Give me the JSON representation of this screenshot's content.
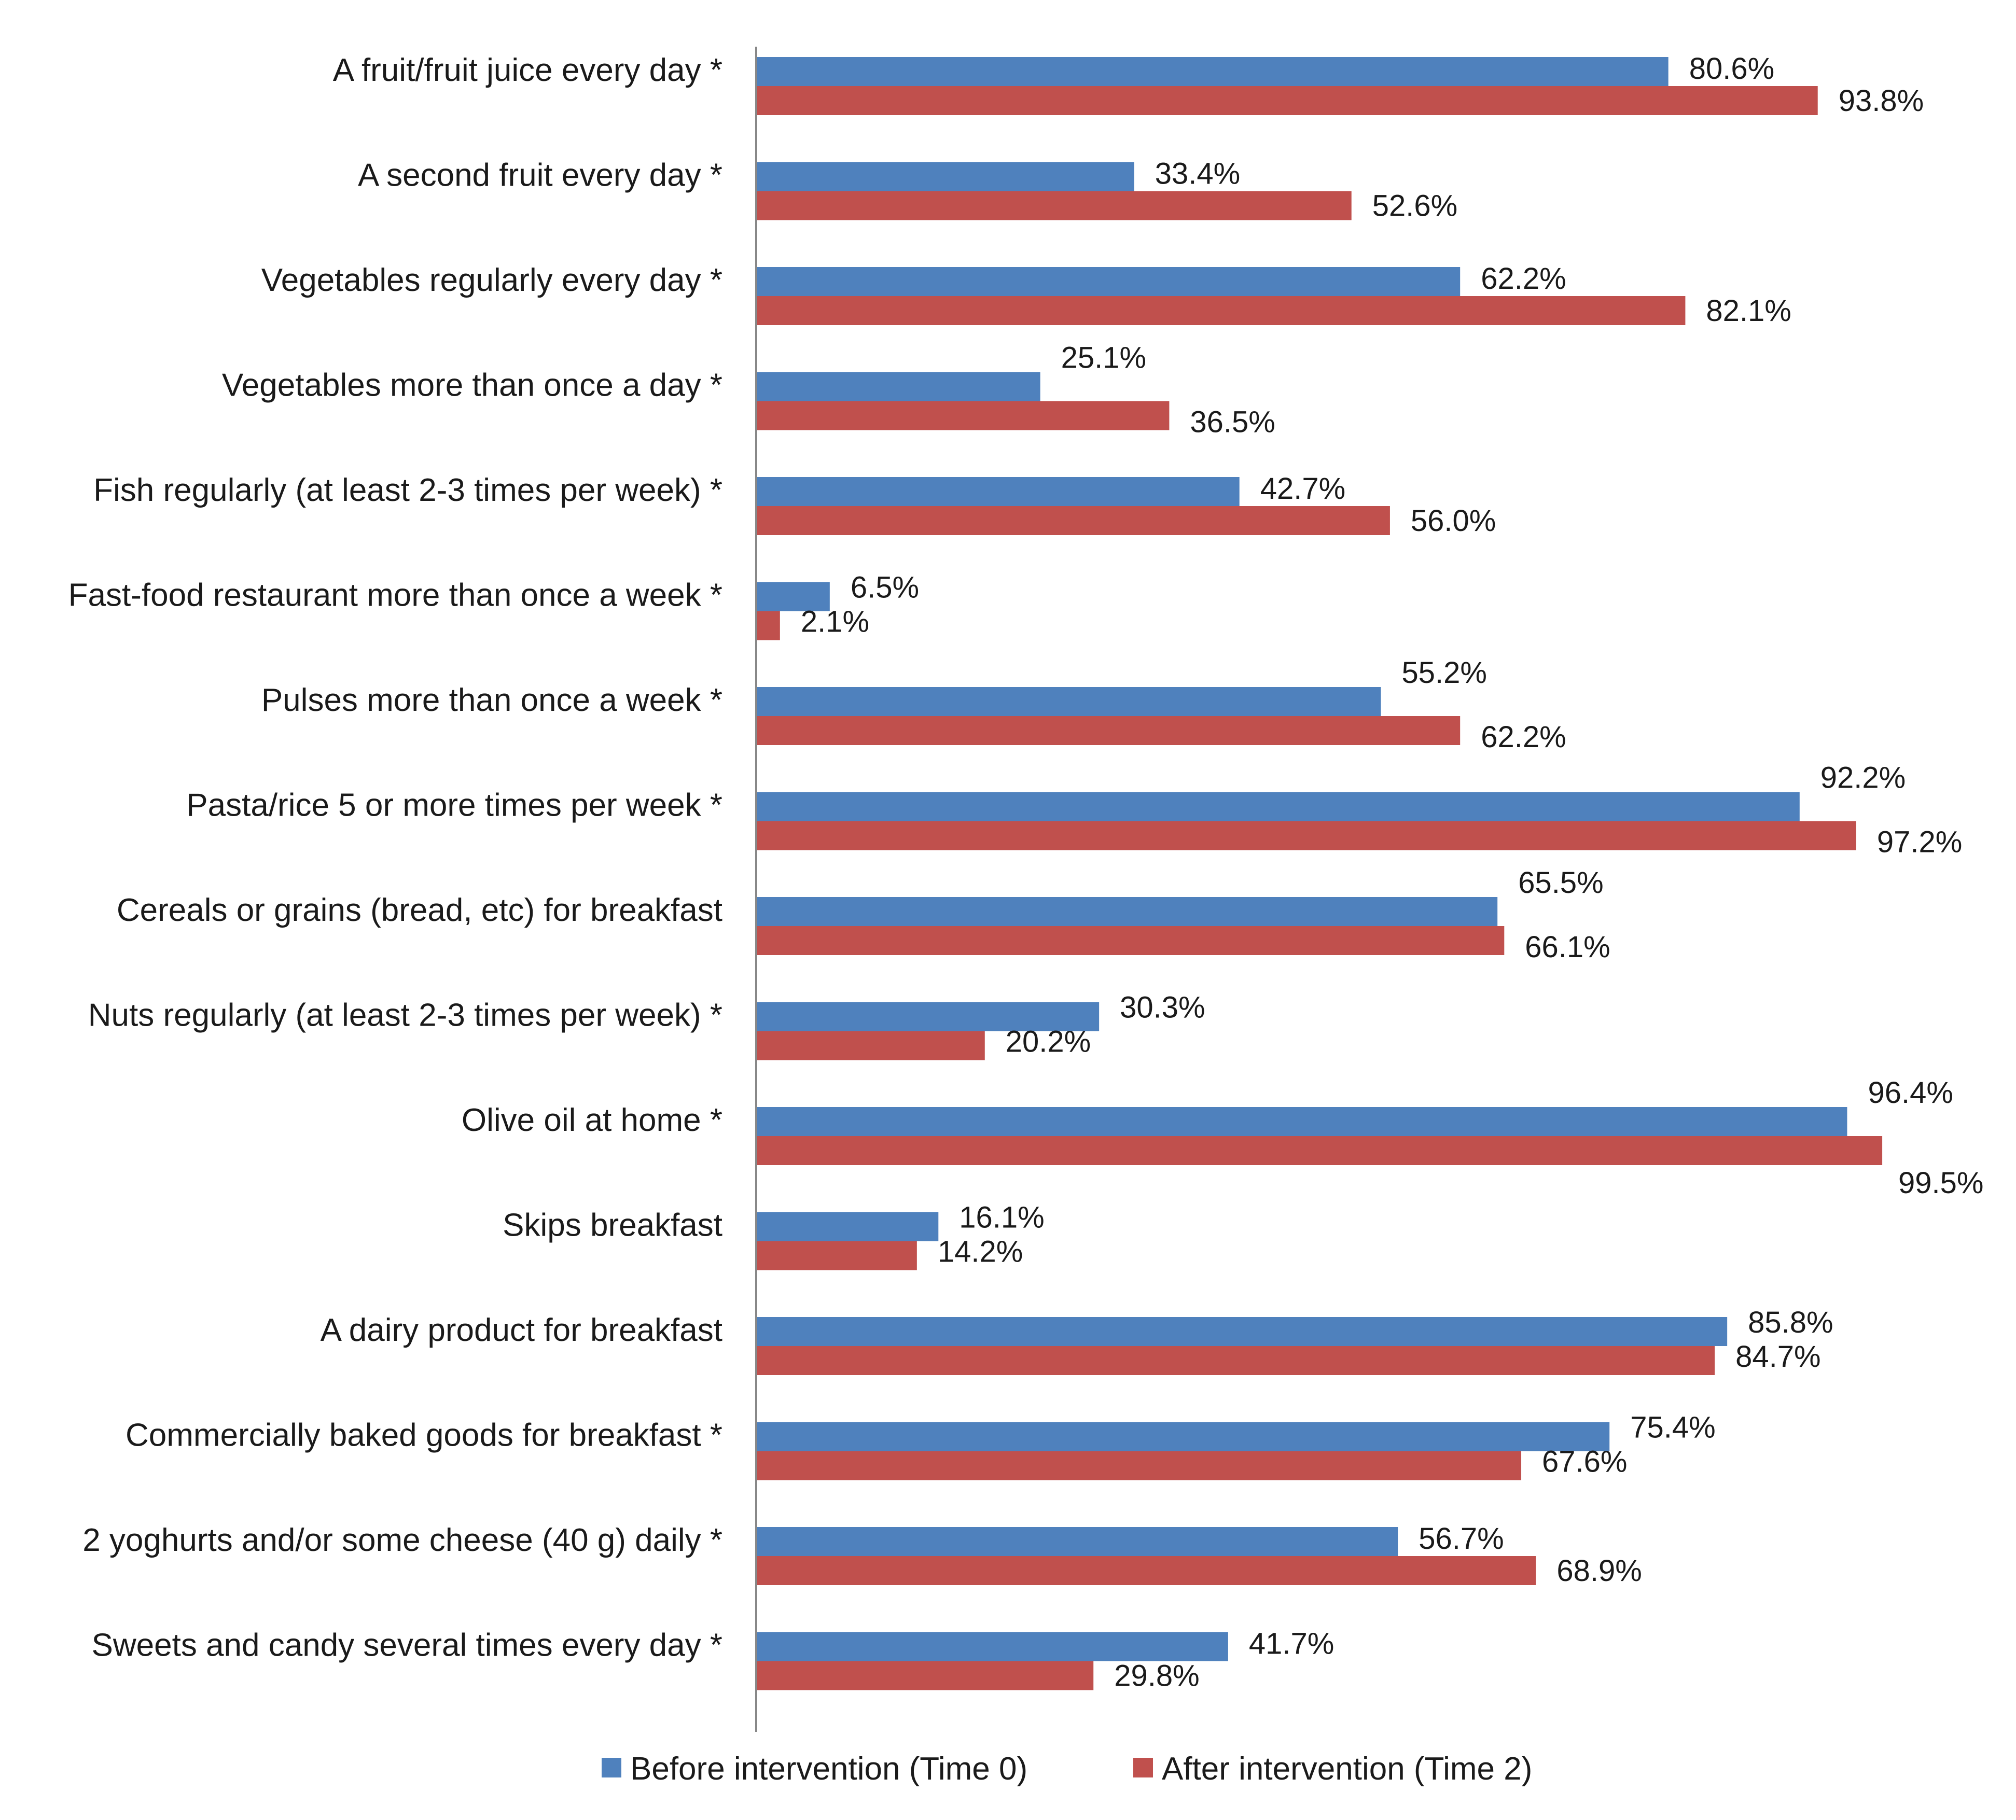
{
  "chart_data": {
    "type": "bar",
    "orientation": "horizontal",
    "title": "",
    "xlabel": "",
    "ylabel": "",
    "xlim": [
      0,
      100
    ],
    "grid": false,
    "legend_position": "bottom",
    "value_suffix": "%",
    "colors": {
      "before": "#4F81BD",
      "after": "#C0504D",
      "axis": "#888888"
    },
    "categories": [
      "A fruit/fruit juice every day *",
      "A second fruit every day *",
      "Vegetables regularly every day *",
      "Vegetables more than once a day *",
      "Fish regularly (at least 2-3 times per week) *",
      "Fast-food restaurant more than once a week *",
      "Pulses more than once a week *",
      "Pasta/rice 5 or more times per week *",
      "Cereals or grains (bread, etc) for breakfast",
      "Nuts regularly (at least 2-3 times per week) *",
      "Olive oil at home *",
      "Skips breakfast",
      "A dairy product for breakfast",
      "Commercially baked goods for breakfast *",
      "2 yoghurts and/or some cheese (40 g) daily *",
      "Sweets and candy several times every day *"
    ],
    "series": [
      {
        "name": "Before intervention (Time 0)",
        "color": "#4F81BD",
        "values": [
          80.6,
          33.4,
          62.2,
          25.1,
          42.7,
          6.5,
          55.2,
          92.2,
          65.5,
          30.3,
          96.4,
          16.1,
          85.8,
          75.4,
          56.7,
          41.7
        ],
        "labels": [
          "80.6%",
          "33.4%",
          "62.2%",
          "25.1%",
          "42.7%",
          "6.5%",
          "55.2%",
          "92.2%",
          "65.5%",
          "30.3%",
          "96.4%",
          "16.1%",
          "85.8%",
          "75.4%",
          "56.7%",
          "41.7%"
        ]
      },
      {
        "name": "After intervention (Time 2)",
        "color": "#C0504D",
        "values": [
          93.8,
          52.6,
          82.1,
          36.5,
          56.0,
          2.1,
          62.2,
          97.2,
          66.1,
          20.2,
          99.5,
          14.2,
          84.7,
          67.6,
          68.9,
          29.8
        ],
        "labels": [
          "93.8%",
          "52.6%",
          "82.1%",
          "36.5%",
          "56.0%",
          "2.1%",
          "62.2%",
          "97.2%",
          "66.1%",
          "20.2%",
          "99.5%",
          "14.2%",
          "84.7%",
          "67.6%",
          "68.9%",
          "29.8%"
        ]
      }
    ]
  }
}
